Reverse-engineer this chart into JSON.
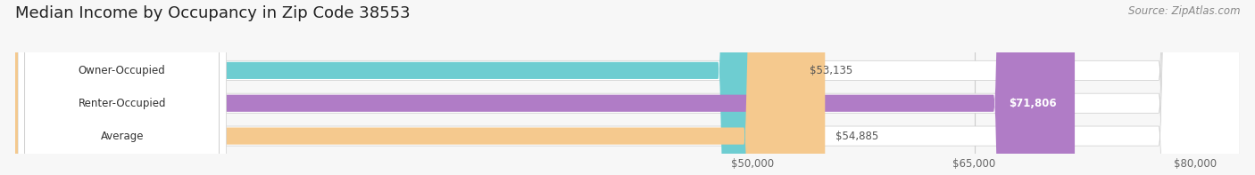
{
  "title": "Median Income by Occupancy in Zip Code 38553",
  "source": "Source: ZipAtlas.com",
  "categories": [
    "Owner-Occupied",
    "Renter-Occupied",
    "Average"
  ],
  "values": [
    53135,
    71806,
    54885
  ],
  "bar_colors": [
    "#6ecdd1",
    "#b07cc6",
    "#f5c98e"
  ],
  "value_labels": [
    "$53,135",
    "$71,806",
    "$54,885"
  ],
  "label_color_inside": [
    false,
    false,
    false
  ],
  "value_inside": [
    false,
    true,
    false
  ],
  "xmin": 0,
  "xmax": 83000,
  "xlim_left": 0,
  "xlim_right": 83000,
  "xticks": [
    50000,
    65000,
    80000
  ],
  "xtick_labels": [
    "$50,000",
    "$65,000",
    "$80,000"
  ],
  "title_fontsize": 13,
  "source_fontsize": 8.5,
  "bar_height": 0.52,
  "background_color": "#f7f7f7",
  "bar_bg_color": "#e8e8e8",
  "grid_color": "#cccccc",
  "label_bg_color": "#ffffff"
}
